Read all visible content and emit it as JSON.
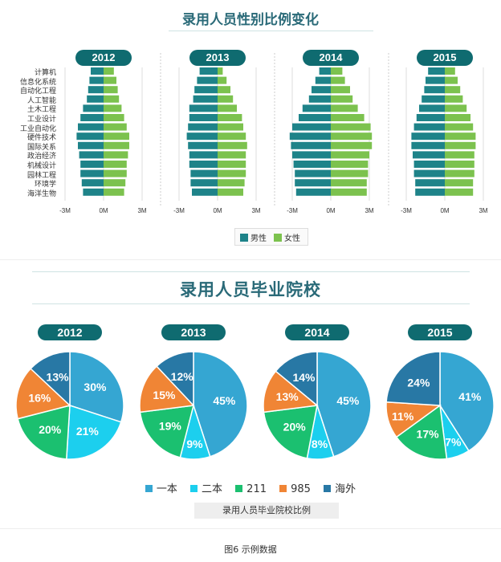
{
  "colors": {
    "male": "#1e8389",
    "female": "#7cc24e",
    "一本": "#35a6d2",
    "二本": "#1ccfee",
    "211": "#1bc070",
    "985": "#f08535",
    "海外": "#2878a5",
    "badge": "#0f6b70",
    "title": "#2a6a78"
  },
  "chart_data": [
    {
      "type": "bar",
      "orientation": "horizontal-diverging",
      "title": "录用人员性别比例变化",
      "categories": [
        "计算机",
        "信息化系统",
        "自动化工程",
        "人工智能",
        "土木工程",
        "工业设计",
        "工业自动化",
        "硬件技术",
        "国际关系",
        "政治经济",
        "机械设计",
        "园林工程",
        "环境学",
        "海洋生物"
      ],
      "xticks": [
        "-3M",
        "0M",
        "3M"
      ],
      "xlim": [
        -3,
        3
      ],
      "legend": [
        "男性",
        "女性"
      ],
      "panels": [
        {
          "year": "2012",
          "male": [
            -1.0,
            -1.1,
            -1.2,
            -1.3,
            -1.6,
            -1.8,
            -2.0,
            -2.1,
            -2.0,
            -1.9,
            -1.8,
            -1.8,
            -1.7,
            -1.6
          ],
          "female": [
            0.8,
            1.0,
            1.1,
            1.2,
            1.4,
            1.6,
            1.8,
            2.0,
            2.0,
            1.9,
            1.8,
            1.8,
            1.7,
            1.6
          ]
        },
        {
          "year": "2013",
          "male": [
            -1.4,
            -1.6,
            -1.8,
            -1.9,
            -2.2,
            -2.2,
            -2.3,
            -2.4,
            -2.3,
            -2.2,
            -2.2,
            -2.1,
            -2.1,
            -2.0
          ],
          "female": [
            0.4,
            0.7,
            1.0,
            1.2,
            1.5,
            1.9,
            2.0,
            2.2,
            2.3,
            2.2,
            2.2,
            2.2,
            2.1,
            2.0
          ]
        },
        {
          "year": "2014",
          "male": [
            -0.9,
            -1.2,
            -1.5,
            -1.7,
            -2.2,
            -2.5,
            -3.0,
            -3.2,
            -3.1,
            -3.0,
            -2.9,
            -2.8,
            -2.8,
            -2.7
          ],
          "female": [
            0.9,
            1.1,
            1.5,
            1.7,
            2.1,
            2.6,
            3.1,
            3.2,
            3.2,
            3.0,
            2.9,
            2.9,
            2.8,
            2.8
          ]
        },
        {
          "year": "2015",
          "male": [
            -1.3,
            -1.5,
            -1.6,
            -1.8,
            -2.0,
            -2.2,
            -2.4,
            -2.6,
            -2.6,
            -2.5,
            -2.4,
            -2.4,
            -2.3,
            -2.3
          ],
          "female": [
            0.8,
            1.0,
            1.2,
            1.4,
            1.7,
            2.0,
            2.2,
            2.4,
            2.4,
            2.3,
            2.3,
            2.3,
            2.2,
            2.2
          ]
        }
      ]
    },
    {
      "type": "pie",
      "title": "录用人员毕业院校",
      "categories": [
        "一本",
        "二本",
        "211",
        "985",
        "海外"
      ],
      "legend_caption": "录用人员毕业院校比例",
      "panels": [
        {
          "year": "2012",
          "values": [
            30,
            21,
            20,
            16,
            13
          ]
        },
        {
          "year": "2013",
          "values": [
            45,
            9,
            19,
            15,
            12
          ]
        },
        {
          "year": "2014",
          "values": [
            45,
            8,
            20,
            13,
            14
          ]
        },
        {
          "year": "2015",
          "values": [
            41,
            7,
            17,
            11,
            24
          ]
        }
      ]
    }
  ],
  "figure_caption": "图6 示例数据"
}
